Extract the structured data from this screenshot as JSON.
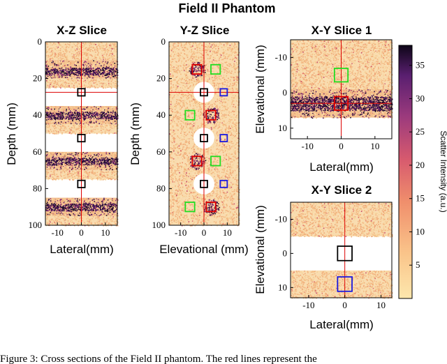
{
  "figure": {
    "title": "Field II Phantom",
    "caption_fragment": "Figure 3:  Cross sections of the Field II phantom. The red lines represent the"
  },
  "colors": {
    "marker_black": "#000000",
    "marker_red": "#e00000",
    "marker_green": "#22dd22",
    "marker_blue": "#1a1ae0",
    "crosshair": "#dd0000",
    "speckle_light": "#f4c98d",
    "speckle_dark": "#2b0b3f"
  },
  "colorbar": {
    "label": "Scatter Intensity (a.u.)",
    "range": [
      0,
      38
    ],
    "ticks": [
      "5",
      "10",
      "15",
      "20",
      "25",
      "30",
      "35"
    ],
    "tick_values": [
      5,
      10,
      15,
      20,
      25,
      30,
      35
    ]
  },
  "chart_data": [
    {
      "type": "heatmap",
      "id": "xz",
      "title": "X-Z Slice",
      "xlabel": "Lateral(mm)",
      "ylabel": "Depth (mm)",
      "xlim": [
        -15,
        15
      ],
      "ylim": [
        0,
        100
      ],
      "y_inverted": true,
      "xticks": [
        -10,
        0,
        10
      ],
      "xtick_labels": [
        "-10",
        "0",
        "10"
      ],
      "yticks": [
        0,
        20,
        40,
        60,
        80,
        100
      ],
      "ytick_labels": [
        "0",
        "20",
        "40",
        "60",
        "80",
        "100"
      ],
      "crosshair": {
        "x": 0,
        "y": 27.5
      },
      "bands": [
        {
          "from": 0,
          "to": 10,
          "kind": "background"
        },
        {
          "from": 10,
          "to": 20,
          "kind": "dense",
          "core": [
            14,
            18
          ]
        },
        {
          "from": 20,
          "to": 25,
          "kind": "background"
        },
        {
          "from": 35,
          "to": 45,
          "kind": "dense",
          "core": [
            38,
            42
          ]
        },
        {
          "from": 45,
          "to": 50,
          "kind": "background"
        },
        {
          "from": 60,
          "to": 70,
          "kind": "dense",
          "core": [
            63,
            67
          ]
        },
        {
          "from": 70,
          "to": 75,
          "kind": "background"
        },
        {
          "from": 85,
          "to": 95,
          "kind": "dense",
          "core": [
            88,
            92
          ]
        },
        {
          "from": 95,
          "to": 100,
          "kind": "background"
        }
      ],
      "markers": [
        {
          "x": 0,
          "y": 27.5,
          "color": "black",
          "size": 3
        },
        {
          "x": 0,
          "y": 52.5,
          "color": "black",
          "size": 3
        },
        {
          "x": 0,
          "y": 77.5,
          "color": "black",
          "size": 3
        }
      ]
    },
    {
      "type": "heatmap",
      "id": "yz",
      "title": "Y-Z Slice",
      "xlabel": "Elevational (mm)",
      "ylabel": "Depth (mm)",
      "xlim": [
        -15,
        15
      ],
      "ylim": [
        0,
        100
      ],
      "y_inverted": true,
      "xticks": [
        -10,
        0,
        10
      ],
      "xtick_labels": [
        "-10",
        "0",
        "10"
      ],
      "yticks": [
        0,
        20,
        40,
        60,
        80,
        100
      ],
      "ytick_labels": [
        "0",
        "20",
        "40",
        "60",
        "80",
        "100"
      ],
      "crosshair": {
        "x": 0,
        "y": 27.5
      },
      "holes": [
        {
          "x": 0,
          "y": 27.5,
          "r": 4.5
        },
        {
          "x": 0,
          "y": 52.5,
          "r": 4.5
        },
        {
          "x": 0,
          "y": 77.5,
          "r": 4.5
        }
      ],
      "lesions": [
        {
          "x": -3,
          "y": 15,
          "r": 3.5
        },
        {
          "x": 3,
          "y": 40,
          "r": 3.5
        },
        {
          "x": -3,
          "y": 65,
          "r": 3.5
        },
        {
          "x": 3,
          "y": 90,
          "r": 3.5
        }
      ],
      "markers": [
        {
          "x": -3,
          "y": 15,
          "color": "red",
          "size": 4
        },
        {
          "x": 5,
          "y": 15,
          "color": "green",
          "size": 4
        },
        {
          "x": 0,
          "y": 27.5,
          "color": "black",
          "size": 3
        },
        {
          "x": 8.5,
          "y": 27.5,
          "color": "blue",
          "size": 3
        },
        {
          "x": -6,
          "y": 40,
          "color": "green",
          "size": 4
        },
        {
          "x": 3,
          "y": 40,
          "color": "red",
          "size": 4
        },
        {
          "x": 0,
          "y": 52.5,
          "color": "black",
          "size": 3
        },
        {
          "x": 8.5,
          "y": 52.5,
          "color": "blue",
          "size": 3
        },
        {
          "x": -3,
          "y": 65,
          "color": "red",
          "size": 4
        },
        {
          "x": 5,
          "y": 65,
          "color": "green",
          "size": 4
        },
        {
          "x": 0,
          "y": 77.5,
          "color": "black",
          "size": 3
        },
        {
          "x": 8.5,
          "y": 77.5,
          "color": "blue",
          "size": 3
        },
        {
          "x": -6,
          "y": 90,
          "color": "green",
          "size": 4
        },
        {
          "x": 3,
          "y": 90,
          "color": "red",
          "size": 4
        }
      ]
    },
    {
      "type": "heatmap",
      "id": "xy1",
      "title": "X-Y Slice 1",
      "xlabel": "Lateral(mm)",
      "ylabel": "Elevational (mm)",
      "xlim": [
        -15,
        15
      ],
      "ylim": [
        -15,
        13
      ],
      "y_inverted": true,
      "xticks": [
        -10,
        0,
        10
      ],
      "xtick_labels": [
        "-10",
        "0",
        "10"
      ],
      "yticks": [
        -10,
        0,
        10
      ],
      "ytick_labels": [
        "-10",
        "0",
        "10"
      ],
      "crosshair": {
        "x": 0,
        "y": 3
      },
      "bands": [
        {
          "from": -15,
          "to": -1,
          "kind": "background"
        },
        {
          "from": -1,
          "to": 7,
          "kind": "dense",
          "core": [
            1,
            5
          ]
        },
        {
          "from": 7,
          "to": 13,
          "kind": "empty"
        }
      ],
      "markers": [
        {
          "x": 0,
          "y": -5,
          "color": "green",
          "size": 4
        },
        {
          "x": 0,
          "y": 3,
          "color": "red",
          "size": 4
        }
      ]
    },
    {
      "type": "heatmap",
      "id": "xy2",
      "title": "X-Y Slice 2",
      "xlabel": "Lateral(mm)",
      "ylabel": "Elevational (mm)",
      "xlim": [
        -15,
        13
      ],
      "ylim": [
        -15,
        13
      ],
      "y_inverted": true,
      "xticks": [
        -10,
        0,
        10
      ],
      "xtick_labels": [
        "-10",
        "0",
        "10"
      ],
      "yticks": [
        -10,
        0,
        10
      ],
      "ytick_labels": [
        "-10",
        "0",
        "10"
      ],
      "crosshair": {
        "x": 0,
        "y": null
      },
      "bands": [
        {
          "from": -15,
          "to": -5,
          "kind": "background"
        },
        {
          "from": -5,
          "to": 5,
          "kind": "empty"
        },
        {
          "from": 5,
          "to": 13,
          "kind": "background"
        }
      ],
      "markers": [
        {
          "x": 0,
          "y": 0,
          "color": "black",
          "size": 4
        },
        {
          "x": 0,
          "y": 9,
          "color": "blue",
          "size": 4
        }
      ]
    }
  ]
}
